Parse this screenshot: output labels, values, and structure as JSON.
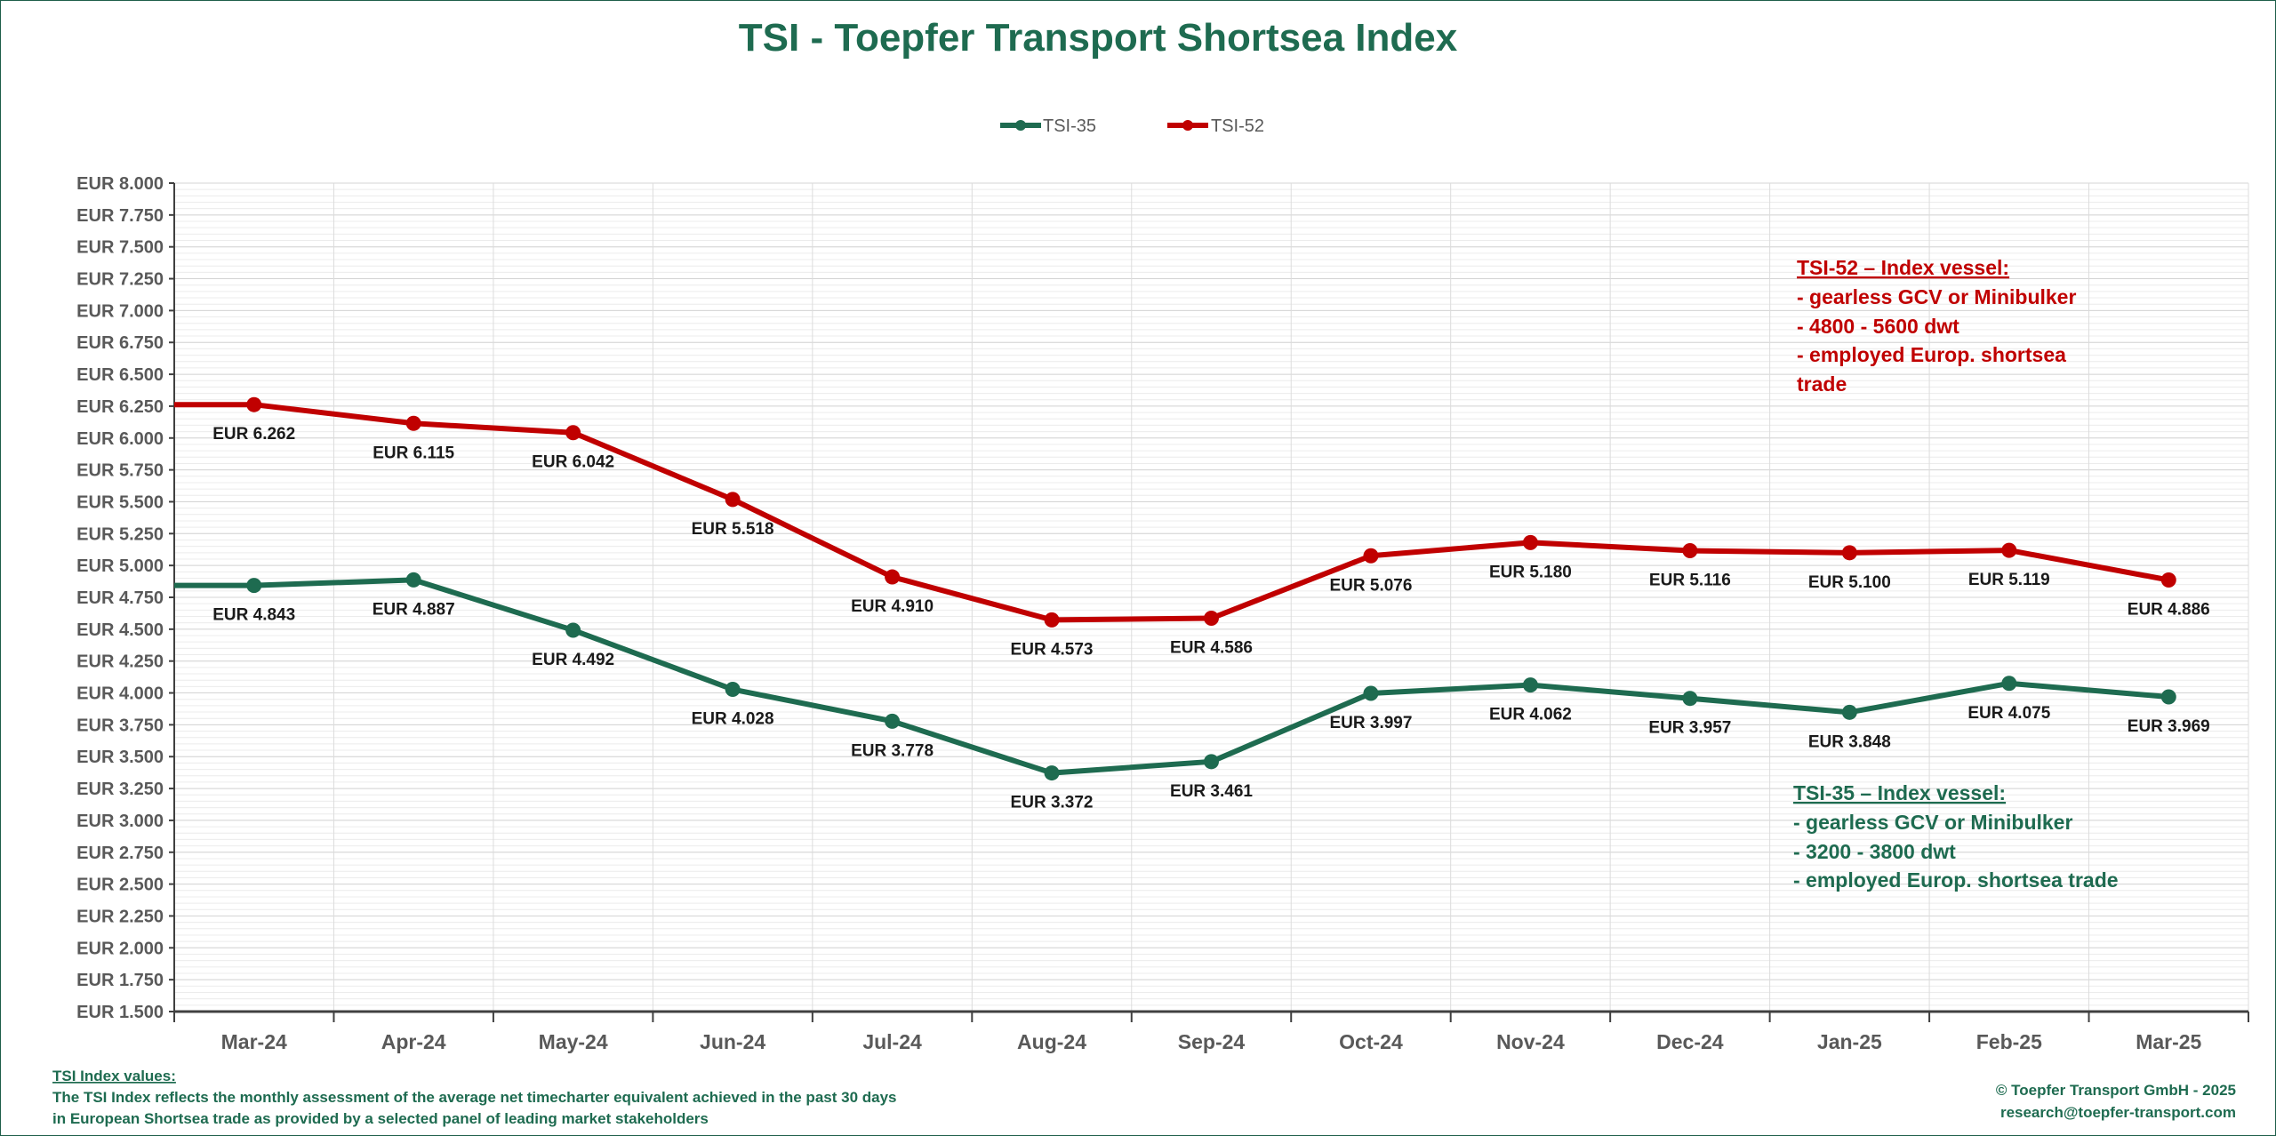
{
  "title": "TSI - Toepfer Transport Shortsea Index",
  "colors": {
    "tsi35": "#1e6b50",
    "tsi52": "#c00000",
    "title": "#1e6b50",
    "text_green": "#1e6b50",
    "text_red": "#c00000"
  },
  "chart_data": {
    "type": "line",
    "title": "TSI - Toepfer Transport Shortsea Index",
    "categories": [
      "Mar-24",
      "Apr-24",
      "May-24",
      "Jun-24",
      "Jul-24",
      "Aug-24",
      "Sep-24",
      "Oct-24",
      "Nov-24",
      "Dec-24",
      "Jan-25",
      "Feb-25",
      "Mar-25"
    ],
    "ylim": [
      1.5,
      8.0
    ],
    "ytick_step": 0.25,
    "ytick_prefix": "EUR ",
    "grid": true,
    "legend_position": "top-center",
    "series": [
      {
        "name": "TSI-35",
        "color": "#1e6b50",
        "values": [
          4.843,
          4.887,
          4.492,
          4.028,
          3.778,
          3.372,
          3.461,
          3.997,
          4.062,
          3.957,
          3.848,
          4.075,
          3.969
        ],
        "labels": [
          "EUR 4.843",
          "EUR 4.887",
          "EUR 4.492",
          "EUR 4.028",
          "EUR 3.778",
          "EUR 3.372",
          "EUR 3.461",
          "EUR 3.997",
          "EUR 4.062",
          "EUR 3.957",
          "EUR 3.848",
          "EUR 4.075",
          "EUR 3.969"
        ]
      },
      {
        "name": "TSI-52",
        "color": "#c00000",
        "values": [
          6.262,
          6.115,
          6.042,
          5.518,
          4.91,
          4.573,
          4.586,
          5.076,
          5.18,
          5.116,
          5.1,
          5.119,
          4.886
        ],
        "labels": [
          "EUR 6.262",
          "EUR 6.115",
          "EUR 6.042",
          "EUR 5.518",
          "EUR 4.910",
          "EUR 4.573",
          "EUR 4.586",
          "EUR 5.076",
          "EUR 5.180",
          "EUR 5.116",
          "EUR 5.100",
          "EUR 5.119",
          "EUR 4.886"
        ]
      }
    ]
  },
  "annotations": {
    "tsi52": {
      "heading": "TSI-52 – Index vessel:",
      "lines": [
        "- gearless GCV or Minibulker",
        "- 4800 - 5600 dwt",
        "- employed Europ. shortsea",
        "trade"
      ]
    },
    "tsi35": {
      "heading": "TSI-35 – Index vessel:",
      "lines": [
        "- gearless GCV or Minibulker",
        "- 3200 - 3800 dwt",
        "- employed Europ. shortsea trade"
      ]
    }
  },
  "footer": {
    "left_heading": "TSI Index values:",
    "left_line1": "The TSI Index reflects the monthly assessment of the average net timecharter equivalent achieved in the past 30 days",
    "left_line2": "in European Shortsea trade as provided by a selected panel of leading market stakeholders",
    "right_line1": "© Toepfer Transport GmbH - 2025",
    "right_line2": "research@toepfer-transport.com"
  }
}
